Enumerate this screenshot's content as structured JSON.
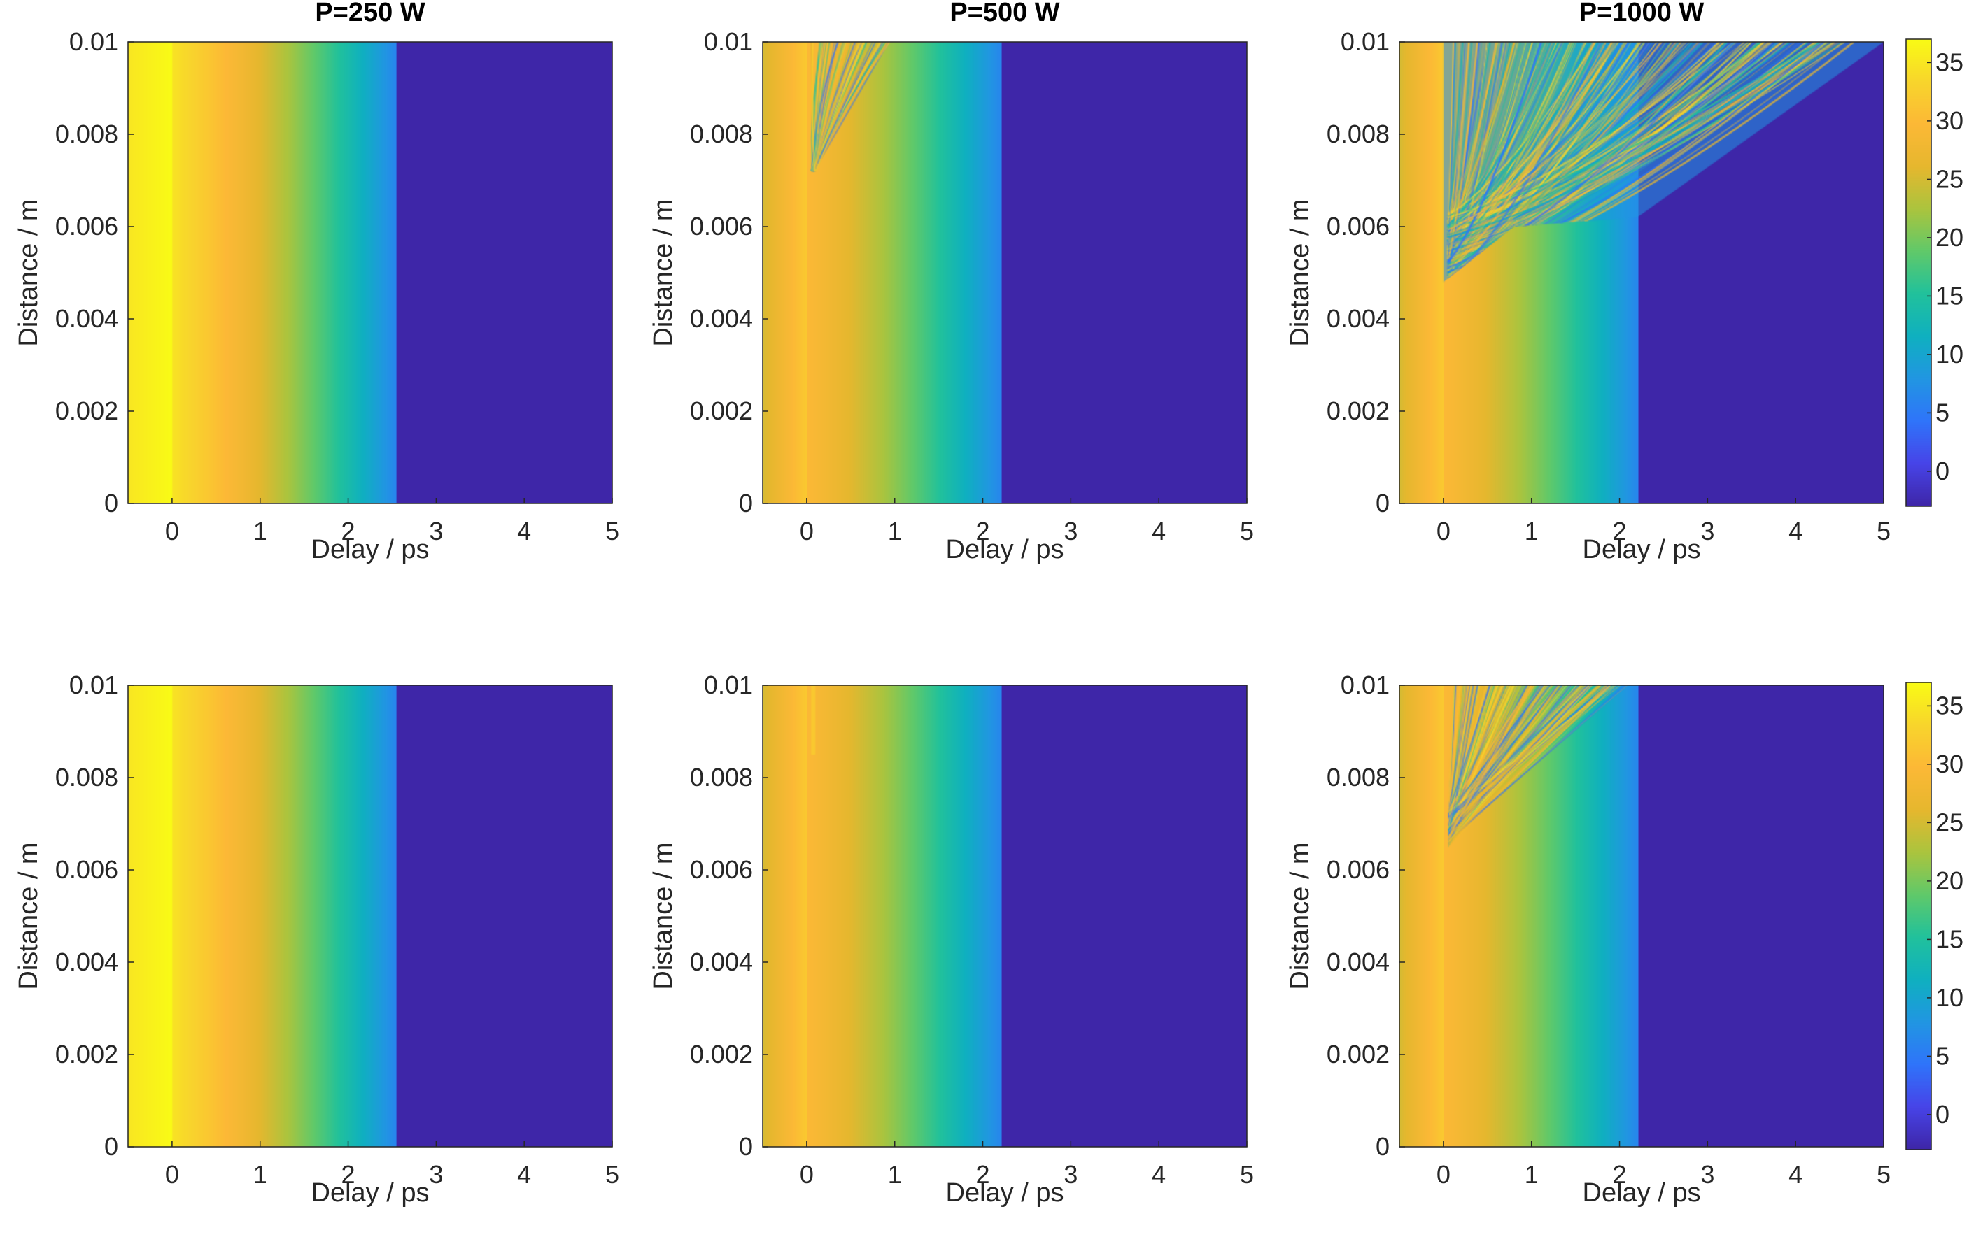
{
  "figure": {
    "columns": [
      {
        "title": "P=250 W"
      },
      {
        "title": "P=500 W"
      },
      {
        "title": "P=1000 W"
      }
    ],
    "xlabel": "Delay / ps",
    "ylabel": "Distance / m"
  },
  "chart_data": [
    {
      "type": "heatmap",
      "title": "P=250 W",
      "row": 1,
      "col": 1,
      "peak": 37,
      "nonlinear": "none",
      "xlabel": "Delay / ps",
      "ylabel": "Distance / m",
      "xlim": [
        -0.5,
        5
      ],
      "ylim": [
        0,
        0.01
      ],
      "xticks": [
        "0",
        "1",
        "2",
        "3",
        "4",
        "5"
      ],
      "yticks": [
        "0",
        "0.002",
        "0.004",
        "0.006",
        "0.008",
        "0.01"
      ]
    },
    {
      "type": "heatmap",
      "title": "P=500 W",
      "row": 1,
      "col": 2,
      "peak": 32,
      "nonlinear": "mild",
      "xlabel": "Delay / ps",
      "ylabel": "Distance / m",
      "xlim": [
        -0.5,
        5
      ],
      "ylim": [
        0,
        0.01
      ],
      "xticks": [
        "0",
        "1",
        "2",
        "3",
        "4",
        "5"
      ],
      "yticks": [
        "0",
        "0.002",
        "0.004",
        "0.006",
        "0.008",
        "0.01"
      ]
    },
    {
      "type": "heatmap",
      "title": "P=1000 W",
      "row": 1,
      "col": 3,
      "peak": 32,
      "nonlinear": "strong",
      "xlabel": "Delay / ps",
      "ylabel": "Distance / m",
      "xlim": [
        -0.5,
        5
      ],
      "ylim": [
        0,
        0.01
      ],
      "xticks": [
        "0",
        "1",
        "2",
        "3",
        "4",
        "5"
      ],
      "yticks": [
        "0",
        "0.002",
        "0.004",
        "0.006",
        "0.008",
        "0.01"
      ]
    },
    {
      "type": "heatmap",
      "title": "",
      "row": 2,
      "col": 1,
      "peak": 37,
      "nonlinear": "none",
      "xlabel": "Delay / ps",
      "ylabel": "Distance / m",
      "xlim": [
        -0.5,
        5
      ],
      "ylim": [
        0,
        0.01
      ],
      "xticks": [
        "0",
        "1",
        "2",
        "3",
        "4",
        "5"
      ],
      "yticks": [
        "0",
        "0.002",
        "0.004",
        "0.006",
        "0.008",
        "0.01"
      ]
    },
    {
      "type": "heatmap",
      "title": "",
      "row": 2,
      "col": 2,
      "peak": 32,
      "nonlinear": "faint",
      "xlabel": "Delay / ps",
      "ylabel": "Distance / m",
      "xlim": [
        -0.5,
        5
      ],
      "ylim": [
        0,
        0.01
      ],
      "xticks": [
        "0",
        "1",
        "2",
        "3",
        "4",
        "5"
      ],
      "yticks": [
        "0",
        "0.002",
        "0.004",
        "0.006",
        "0.008",
        "0.01"
      ]
    },
    {
      "type": "heatmap",
      "title": "",
      "row": 2,
      "col": 3,
      "peak": 32,
      "nonlinear": "moderate",
      "xlabel": "Delay / ps",
      "ylabel": "Distance / m",
      "xlim": [
        -0.5,
        5
      ],
      "ylim": [
        0,
        0.01
      ],
      "xticks": [
        "0",
        "1",
        "2",
        "3",
        "4",
        "5"
      ],
      "yticks": [
        "0",
        "0.002",
        "0.004",
        "0.006",
        "0.008",
        "0.01"
      ]
    }
  ],
  "colorbars": [
    {
      "row": 1,
      "range": [
        -3,
        37
      ],
      "ticks": [
        "0",
        "5",
        "10",
        "15",
        "20",
        "25",
        "30",
        "35"
      ]
    },
    {
      "row": 2,
      "range": [
        -3,
        37
      ],
      "ticks": [
        "0",
        "5",
        "10",
        "15",
        "20",
        "25",
        "30",
        "35"
      ]
    }
  ],
  "colormap": [
    "#3e26a8",
    "#4744e8",
    "#2f74fa",
    "#2196e2",
    "#0fb0c0",
    "#21c19c",
    "#60c96a",
    "#abc43e",
    "#e6b72e",
    "#fcb836",
    "#f8d52c",
    "#f9fb15"
  ]
}
